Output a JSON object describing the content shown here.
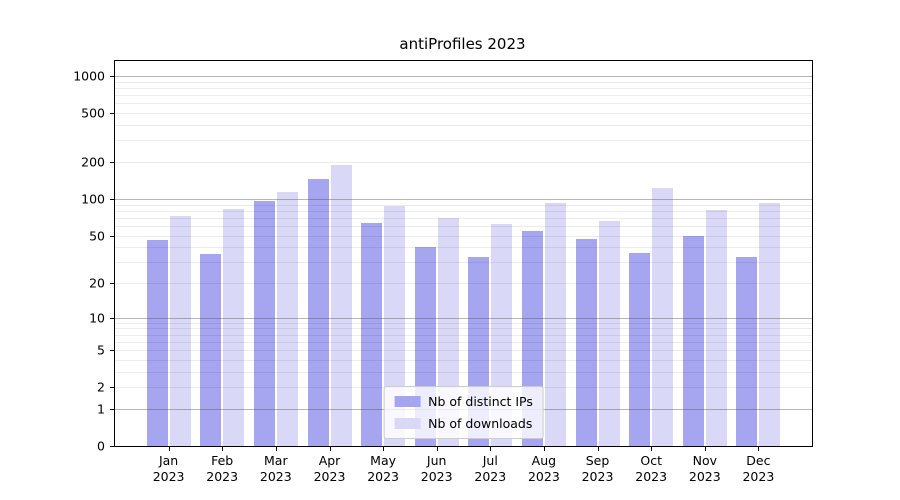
{
  "chart_data": {
    "type": "bar",
    "title": "antiProfiles 2023",
    "categories": [
      "Jan",
      "Feb",
      "Mar",
      "Apr",
      "May",
      "Jun",
      "Jul",
      "Aug",
      "Sep",
      "Oct",
      "Nov",
      "Dec"
    ],
    "category_year": "2023",
    "series": [
      {
        "name": "Nb of distinct IPs",
        "color": "#a5a5f0",
        "values": [
          46,
          35,
          97,
          146,
          63,
          40,
          33,
          55,
          47,
          36,
          50,
          33
        ]
      },
      {
        "name": "Nb of downloads",
        "color": "#d9d9f7",
        "values": [
          72,
          83,
          113,
          188,
          88,
          70,
          62,
          92,
          66,
          122,
          81,
          92
        ]
      }
    ],
    "xlabel": "",
    "ylabel": "",
    "yscale": "log1p",
    "ytick_values": [
      1000,
      500,
      200,
      100,
      50,
      20,
      10,
      5,
      2,
      1,
      0
    ],
    "ylim_top": 1325,
    "grid": "on",
    "grid_major_at": [
      1,
      10,
      100,
      1000
    ],
    "legend_position": "lower center"
  },
  "colors": {
    "background": "#ffffff",
    "spine": "#000000",
    "grid_major": "#c8c8c8",
    "grid_minor": "#ececec",
    "series_ips": "#a5a5f0",
    "series_downloads": "#d9d9f7"
  }
}
